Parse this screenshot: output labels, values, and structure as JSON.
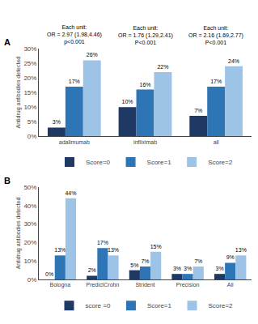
{
  "chart_data": [
    {
      "type": "bar",
      "title": "A",
      "categories": [
        "adalimumab",
        "infliximab",
        "all"
      ],
      "series": [
        {
          "name": "Score=0",
          "color": "#1f3864",
          "values": [
            3,
            10,
            7
          ],
          "value_labels": [
            "3%",
            "10%",
            "7%"
          ]
        },
        {
          "name": "Score=1",
          "color": "#2e75b6",
          "values": [
            17,
            16,
            17
          ],
          "value_labels": [
            "17%",
            "16%",
            "17%"
          ]
        },
        {
          "name": "Score=2",
          "color": "#9dc3e6",
          "values": [
            26,
            22,
            24
          ],
          "value_labels": [
            "26%",
            "22%",
            "24%"
          ]
        }
      ],
      "ylabel": "Antidrug antibodies detected",
      "ylim": [
        0,
        30
      ],
      "yticks": [
        {
          "value": 0,
          "label": "0%"
        },
        {
          "value": 5,
          "label": "5%"
        },
        {
          "value": 10,
          "label": "10%"
        },
        {
          "value": 15,
          "label": "15%"
        },
        {
          "value": 20,
          "label": "20%"
        },
        {
          "value": 25,
          "label": "25%"
        },
        {
          "value": 30,
          "label": "30%"
        }
      ],
      "annotations": [
        "Each unit:\nOR = 2.97 (1.98,4.46)\np<0.001",
        "Each unit:\nOR = 1.76 (1.29,2.41)\nP<0.001",
        "Each unit:\nOR = 2.16 (1.69,2.77)\nP<0.001"
      ],
      "data_labels": true,
      "grid": false,
      "legend": "bottom"
    },
    {
      "type": "bar",
      "title": "B",
      "categories": [
        "Bologna",
        "PredictCrohn",
        "Strident",
        "Precision",
        "All"
      ],
      "series": [
        {
          "name": "score =0",
          "color": "#1f3864",
          "values": [
            0,
            2,
            5,
            3,
            3
          ],
          "value_labels": [
            "0%",
            "2%",
            "5%",
            "3%",
            "3%"
          ]
        },
        {
          "name": "Score=1",
          "color": "#2e75b6",
          "values": [
            13,
            17,
            7,
            3,
            9
          ],
          "value_labels": [
            "13%",
            "17%",
            "7%",
            "3%",
            "9%"
          ]
        },
        {
          "name": "Score=2",
          "color": "#9dc3e6",
          "values": [
            44,
            13,
            15,
            7,
            13
          ],
          "value_labels": [
            "44%",
            "13%",
            "15%",
            "7%",
            "13%"
          ]
        }
      ],
      "ylabel": "Antidrug antibodies detected",
      "ylim": [
        0,
        50
      ],
      "yticks": [
        {
          "value": 0,
          "label": "0%"
        },
        {
          "value": 10,
          "label": "10%"
        },
        {
          "value": 20,
          "label": "20%"
        },
        {
          "value": 30,
          "label": "30%"
        },
        {
          "value": 40,
          "label": "40%"
        },
        {
          "value": 50,
          "label": "50%"
        }
      ],
      "data_labels": true,
      "grid": false,
      "legend": "bottom"
    }
  ]
}
